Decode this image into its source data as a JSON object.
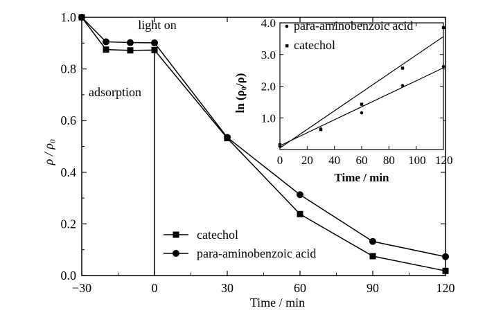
{
  "chart_data": [
    {
      "type": "line",
      "xlabel": "Time / min",
      "ylabel": "ρ / ρ₀",
      "xlim": [
        -30,
        120
      ],
      "ylim": [
        0,
        1.0
      ],
      "x_ticks": [
        "−30",
        "0",
        "30",
        "60",
        "90",
        "120"
      ],
      "y_ticks": [
        "0.0",
        "0.2",
        "0.4",
        "0.6",
        "0.8",
        "1.0"
      ],
      "legend_position": "bottom-center",
      "annotations": [
        "light on",
        "adsorption"
      ],
      "series": [
        {
          "name": "catechol",
          "marker": "square",
          "x": [
            -30,
            -20,
            -10,
            0,
            30,
            60,
            90,
            120
          ],
          "y": [
            1.0,
            0.875,
            0.872,
            0.873,
            0.532,
            0.238,
            0.075,
            0.018
          ]
        },
        {
          "name": "para-aminobenzoic acid",
          "marker": "circle",
          "x": [
            -30,
            -20,
            -10,
            0,
            30,
            60,
            90,
            120
          ],
          "y": [
            1.0,
            0.905,
            0.902,
            0.901,
            0.535,
            0.313,
            0.132,
            0.073
          ]
        }
      ]
    },
    {
      "type": "scatter",
      "xlabel": "Time / min",
      "ylabel": "ln (ρ₀/ρ)",
      "xlim": [
        0,
        120
      ],
      "ylim": [
        0,
        4.0
      ],
      "x_ticks": [
        "0",
        "20",
        "40",
        "60",
        "80",
        "100",
        "120"
      ],
      "y_ticks": [
        "1.0",
        "2.0",
        "3.0",
        "4.0"
      ],
      "legend_position": "top-left",
      "series": [
        {
          "name": "para-aminobenzoic acid",
          "x": [
            0,
            30,
            60,
            90,
            120
          ],
          "y": [
            0.1,
            0.65,
            1.16,
            2.02,
            2.62
          ],
          "fit": [
            0.12,
            0.0205
          ]
        },
        {
          "name": "catechol",
          "x": [
            0,
            30,
            60,
            90,
            120
          ],
          "y": [
            0.15,
            0.63,
            1.43,
            2.57,
            3.85
          ],
          "fit": [
            0.05,
            0.0293
          ]
        }
      ]
    }
  ]
}
